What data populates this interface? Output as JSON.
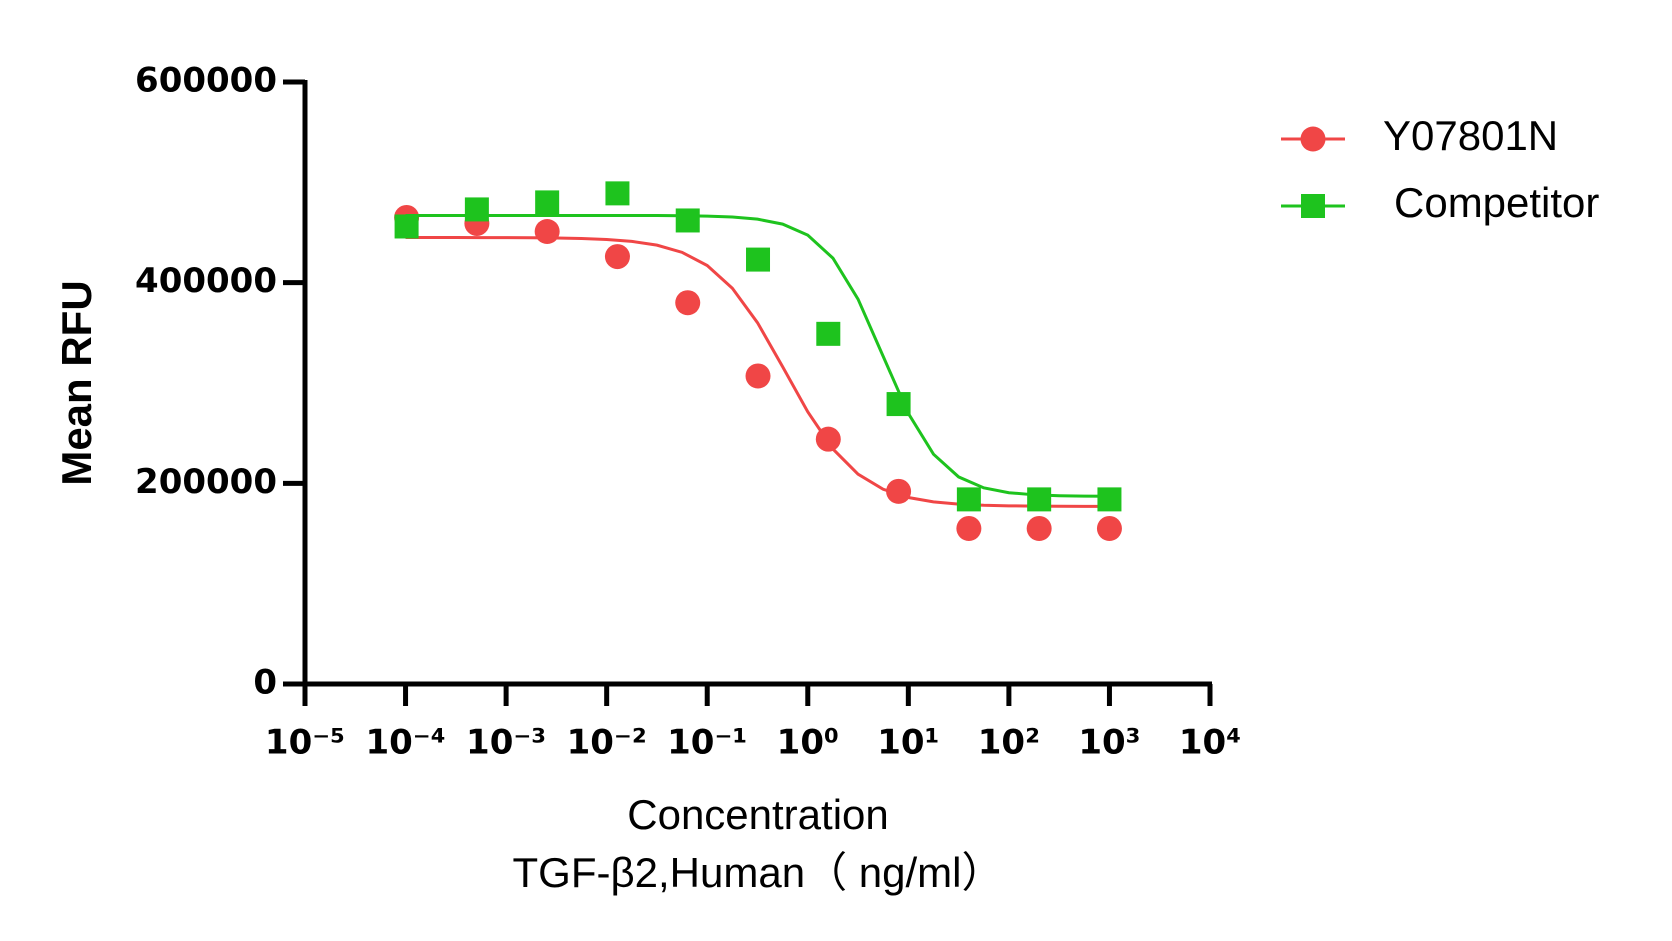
{
  "chart_data": {
    "type": "dose-response",
    "x_title": "Concentration",
    "x_subtitle": "TGF-β2,Human（ ng/ml）",
    "y_title": "Mean RFU",
    "x_log": true,
    "xlim": [
      1e-05,
      10000
    ],
    "xticks": [
      {
        "value": 1e-05,
        "label": "10⁻⁵"
      },
      {
        "value": 0.0001,
        "label": "10⁻⁴"
      },
      {
        "value": 0.001,
        "label": "10⁻³"
      },
      {
        "value": 0.01,
        "label": "10⁻²"
      },
      {
        "value": 0.1,
        "label": "10⁻¹"
      },
      {
        "value": 1,
        "label": "10⁰"
      },
      {
        "value": 10,
        "label": "10¹"
      },
      {
        "value": 100,
        "label": "10²"
      },
      {
        "value": 1000,
        "label": "10³"
      },
      {
        "value": 10000,
        "label": "10⁴"
      }
    ],
    "ylim": [
      0,
      600000
    ],
    "yticks": [
      0,
      200000,
      400000,
      600000
    ],
    "legend": "top-right",
    "x": [
      0.0001024,
      0.000512,
      0.00256,
      0.0128,
      0.064,
      0.32,
      1.6,
      8,
      40,
      200,
      1000
    ],
    "fit_x": [
      0.0001,
      0.0001778,
      0.0003162,
      0.0005623,
      0.001,
      0.001778,
      0.003162,
      0.005623,
      0.01,
      0.01778,
      0.03162,
      0.05623,
      0.1,
      0.1778,
      0.3162,
      0.5623,
      1,
      1.778,
      3.162,
      5.623,
      10,
      17.78,
      31.62,
      56.23,
      100,
      177.8,
      316.2,
      562.3,
      1000
    ],
    "series": [
      {
        "name": "Y07801N",
        "color": "#f04646",
        "marker": "circle",
        "values": [
          465000,
          459000,
          451000,
          426000,
          380000,
          307000,
          244000,
          192000,
          155000,
          155000,
          155000
        ],
        "fit_values": [
          445000,
          444980,
          444970,
          444940,
          444880,
          444750,
          444510,
          444020,
          443050,
          441130,
          437390,
          430230,
          417060,
          394490,
          360120,
          316220,
          271200,
          234230,
          209100,
          194110,
          185860,
          181520,
          179280,
          178150,
          177580,
          177290,
          177150,
          177070,
          177040
        ]
      },
      {
        "name": "Competitor",
        "color": "#1ec31e",
        "marker": "square",
        "values": [
          456000,
          473000,
          480000,
          489000,
          462000,
          423000,
          349000,
          279000,
          184000,
          184000,
          184000
        ],
        "fit_values": [
          467000,
          467000,
          467000,
          467000,
          467000,
          467000,
          467000,
          466990,
          466980,
          466950,
          466880,
          466730,
          466330,
          465420,
          463290,
          458360,
          447340,
          424450,
          383530,
          326520,
          269640,
          229040,
          206400,
          195530,
          190660,
          188560,
          187660,
          187280,
          187120
        ]
      }
    ]
  }
}
